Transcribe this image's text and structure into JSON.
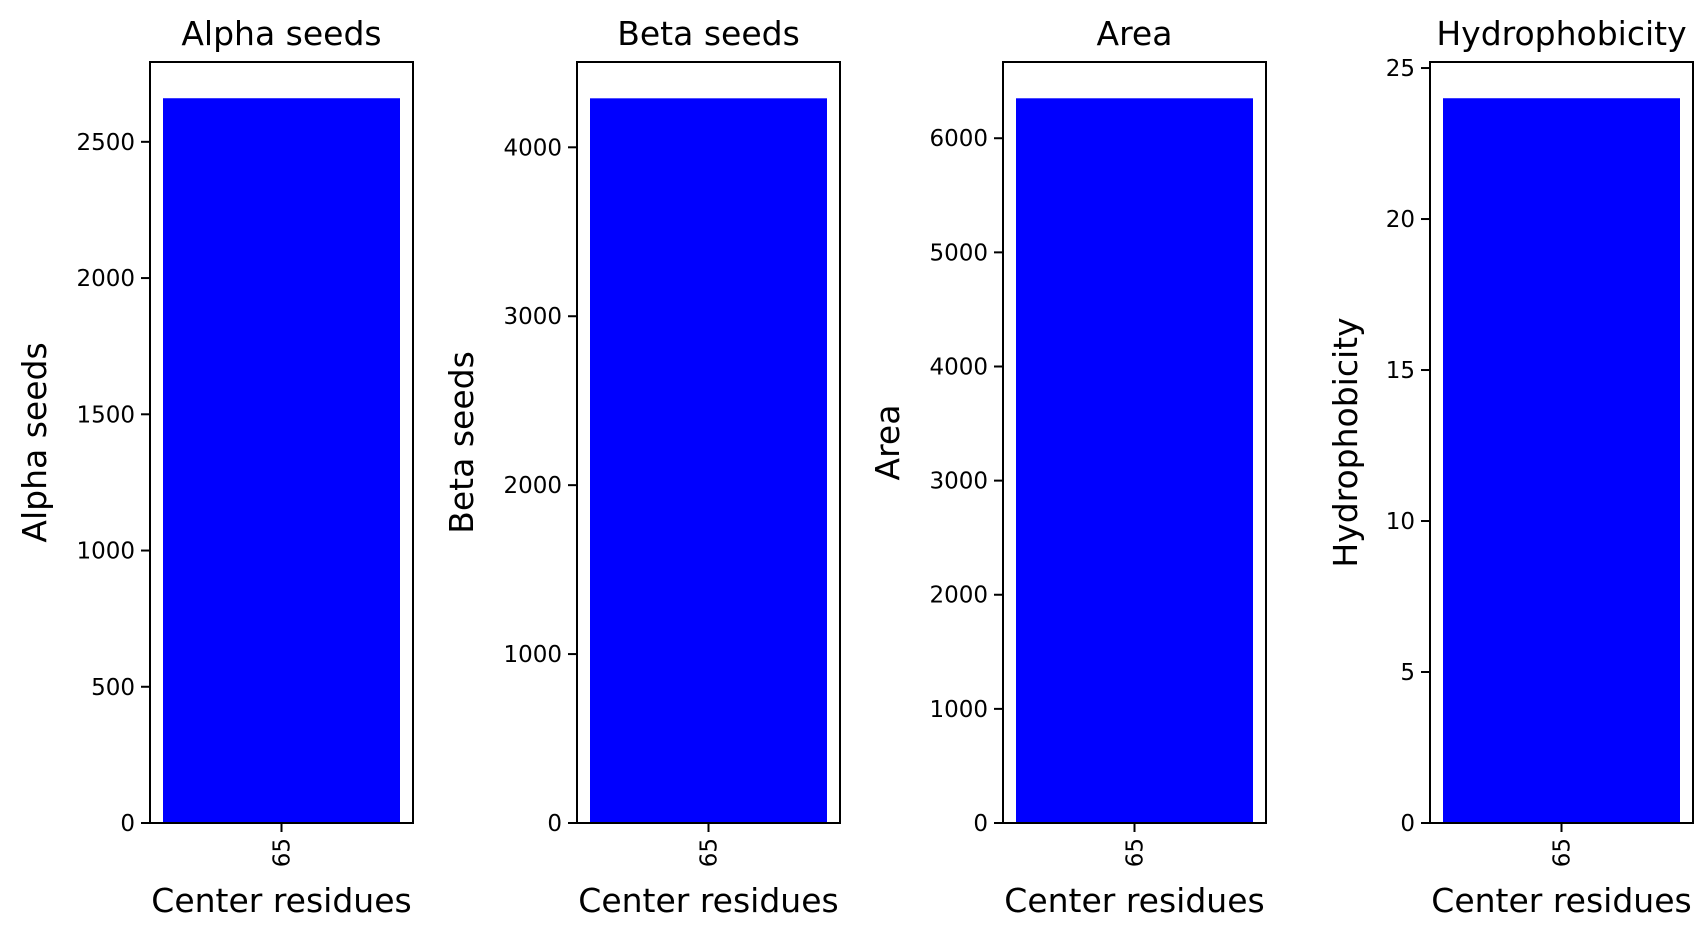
{
  "chart_data": [
    {
      "type": "bar",
      "title": "Alpha seeds",
      "xlabel": "Center residues",
      "ylabel": "Alpha seeds",
      "categories": [
        "65"
      ],
      "values": [
        2660
      ],
      "ylim": [
        0,
        2793
      ],
      "yticks": [
        0,
        500,
        1000,
        1500,
        2000,
        2500
      ],
      "color": "#0000ff"
    },
    {
      "type": "bar",
      "title": "Beta seeds",
      "xlabel": "Center residues",
      "ylabel": "Beta seeds",
      "categories": [
        "65"
      ],
      "values": [
        4290
      ],
      "ylim": [
        0,
        4505
      ],
      "yticks": [
        0,
        1000,
        2000,
        3000,
        4000
      ],
      "color": "#0000ff"
    },
    {
      "type": "bar",
      "title": "Area",
      "xlabel": "Center residues",
      "ylabel": "Area",
      "categories": [
        "65"
      ],
      "values": [
        6350
      ],
      "ylim": [
        0,
        6668
      ],
      "yticks": [
        0,
        1000,
        2000,
        3000,
        4000,
        5000,
        6000
      ],
      "color": "#0000ff"
    },
    {
      "type": "bar",
      "title": "Hydrophobicity",
      "xlabel": "Center residues",
      "ylabel": "Hydrophobicity",
      "categories": [
        "65"
      ],
      "values": [
        24
      ],
      "ylim": [
        0,
        25.2
      ],
      "yticks": [
        0,
        5,
        10,
        15,
        20,
        25
      ],
      "color": "#0000ff"
    }
  ]
}
